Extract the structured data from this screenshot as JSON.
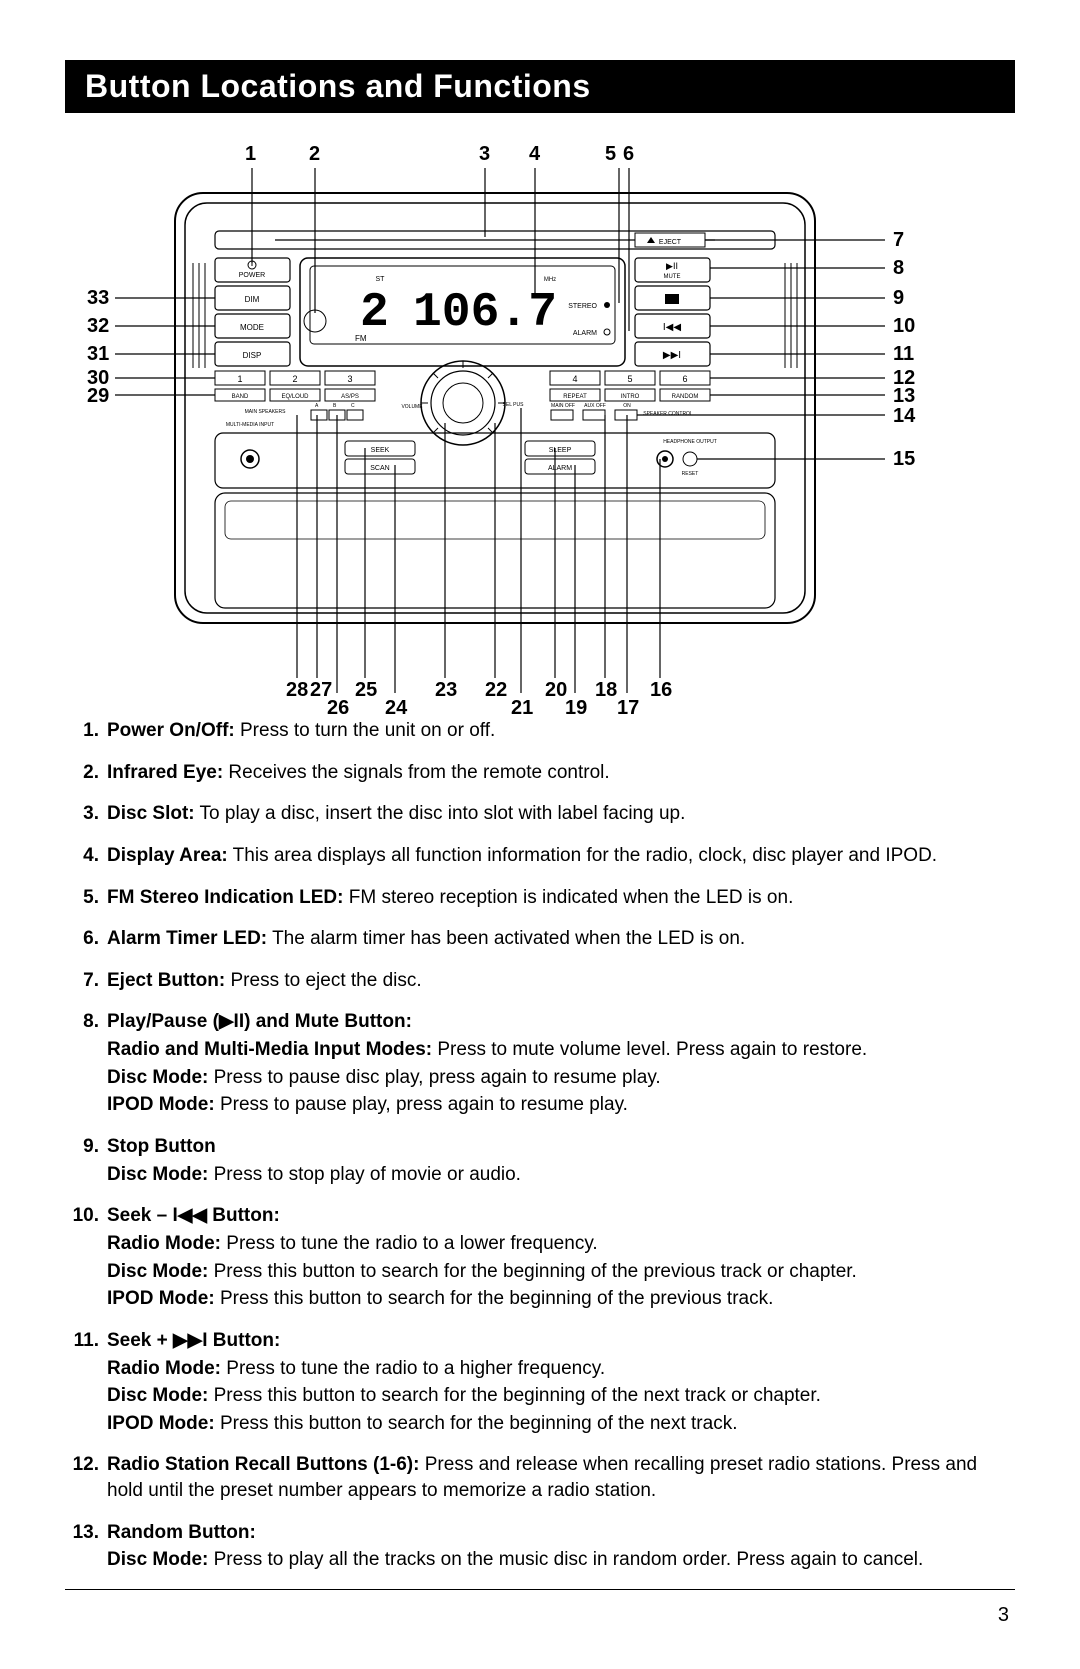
{
  "title": "Button Locations and Functions",
  "page_number": "3",
  "diagram": {
    "display_value": "106.7",
    "preset": "2",
    "band": "FM",
    "labels": {
      "power": "POWER",
      "dim": "DIM",
      "mode": "MODE",
      "disp": "DISP",
      "eject": "EJECT",
      "mute": "MUTE",
      "stereo": "STEREO",
      "alarm_led": "ALARM",
      "band_btn": "BAND",
      "eqloud": "EQ/LOUD",
      "asps": "AS/PS",
      "repeat": "REPEAT",
      "intro": "INTRO",
      "random": "RANDOM",
      "seek": "SEEK",
      "scan": "SCAN",
      "sleep": "SLEEP",
      "alarm_btn": "ALARM",
      "mm_input": "MULTI-MEDIA INPUT",
      "mainspk": "MAIN SPEAKERS",
      "mainoff": "MAIN OFF",
      "auxoff": "AUX OFF",
      "spkctrl": "SPEAKER CONTROL",
      "headphone": "HEADPHONE OUTPUT",
      "reset": "RESET",
      "vol": "VOLUME",
      "sel": "SEL PUS",
      "st": "ST",
      "mhz": "MHz",
      "on": "ON",
      "a": "A",
      "b": "B",
      "c": "C"
    },
    "top_numbers": [
      "1",
      "2",
      "3",
      "4",
      "5",
      "6"
    ],
    "right_numbers": [
      "7",
      "8",
      "9",
      "10",
      "11",
      "12",
      "13",
      "14",
      "15"
    ],
    "left_numbers": [
      "33",
      "32",
      "31",
      "30",
      "29"
    ],
    "bottom_upper": [
      "28",
      "27",
      "25",
      "23",
      "22",
      "20",
      "18",
      "16"
    ],
    "bottom_lower": [
      "26",
      "24",
      "21",
      "19",
      "17"
    ]
  },
  "items": [
    {
      "n": "1.",
      "label": "Power On/Off:",
      "text": " Press to turn the unit on or off."
    },
    {
      "n": "2.",
      "label": "Infrared Eye:",
      "text": " Receives the signals from the remote control."
    },
    {
      "n": "3.",
      "label": "Disc Slot:",
      "text": " To play a disc, insert the disc into slot with label facing up."
    },
    {
      "n": "4.",
      "label": "Display Area:",
      "text": " This area displays all function information for the radio, clock, disc player and IPOD."
    },
    {
      "n": "5.",
      "label": "FM Stereo Indication LED:",
      "text": " FM stereo reception is indicated when the LED is on."
    },
    {
      "n": "6.",
      "label": "Alarm Timer LED:",
      "text": " The alarm timer has been activated when the LED is on."
    },
    {
      "n": "7.",
      "label": "Eject Button:",
      "text": " Press to eject the disc."
    },
    {
      "n": "8.",
      "label": "Play/Pause (▶II) and Mute Button:",
      "text": "",
      "subs": [
        {
          "l": "Radio and Multi-Media Input Modes:",
          "t": " Press to mute volume level. Press again to restore."
        },
        {
          "l": "Disc Mode:",
          "t": " Press to pause disc play, press again to resume play."
        },
        {
          "l": "IPOD Mode:",
          "t": " Press to pause play, press again to resume play."
        }
      ]
    },
    {
      "n": "9.",
      "label": "Stop Button",
      "text": "",
      "subs": [
        {
          "l": "Disc Mode:",
          "t": " Press to stop play of movie or audio."
        }
      ]
    },
    {
      "n": "10.",
      "label": "Seek – I◀◀ Button:",
      "text": "",
      "subs": [
        {
          "l": "Radio Mode:",
          "t": " Press to tune the radio to a lower frequency."
        },
        {
          "l": "Disc Mode:",
          "t": " Press this button to search for the beginning of the previous track or chapter."
        },
        {
          "l": "IPOD Mode:",
          "t": " Press this button to search for the beginning of the previous track."
        }
      ]
    },
    {
      "n": "11.",
      "label": "Seek + ▶▶I Button:",
      "text": "",
      "subs": [
        {
          "l": "Radio Mode:",
          "t": " Press to tune the radio to a higher frequency."
        },
        {
          "l": "Disc Mode:",
          "t": " Press this button to search for the beginning of the next track or chapter."
        },
        {
          "l": "IPOD Mode:",
          "t": " Press this button to search for the beginning of the next track."
        }
      ]
    },
    {
      "n": "12.",
      "label": "Radio Station Recall Buttons (1-6):",
      "text": " Press and release when recalling preset radio stations. Press and hold until the preset number appears to memorize a radio station."
    },
    {
      "n": "13.",
      "label": "Random Button:",
      "text": "",
      "subs": [
        {
          "l": "Disc Mode:",
          "t": " Press to play all the tracks on the music disc in random order. Press again to cancel."
        }
      ]
    }
  ]
}
